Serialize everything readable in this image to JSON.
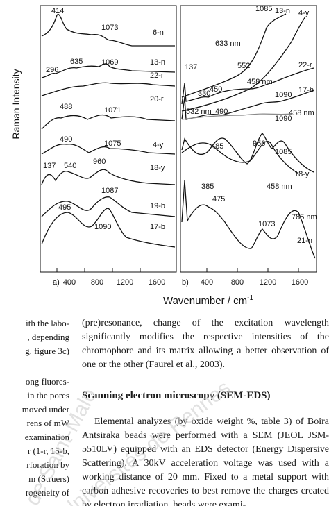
{
  "figure": {
    "y_axis_label": "Raman Intensity",
    "x_axis_label": "Wavenumber / cm",
    "x_axis_superscript": "-1",
    "panel_a": {
      "panel_label": "a)",
      "x_ticks": [
        "400",
        "800",
        "1200",
        "1600"
      ],
      "spectra": [
        {
          "label": "6-n",
          "peaks": [
            "414",
            "1073"
          ]
        },
        {
          "label": "13-n",
          "peaks": [
            "296",
            "635",
            "1069"
          ]
        },
        {
          "label": "22-r",
          "peaks": []
        },
        {
          "label": "20-r",
          "peaks": [
            "488",
            "1071"
          ]
        },
        {
          "label": "4-y",
          "peaks": [
            "490",
            "1075"
          ]
        },
        {
          "label": "18-y",
          "peaks": [
            "137",
            "540",
            "960"
          ]
        },
        {
          "label": "19-b",
          "peaks": [
            "1087"
          ]
        },
        {
          "label": "17-b",
          "peaks": [
            "495",
            "1090"
          ]
        }
      ]
    },
    "panel_b": {
      "panel_label": "b)",
      "x_ticks": [
        "400",
        "800",
        "1200",
        "1600"
      ],
      "spectra": [
        {
          "label": "13-n",
          "laser": "633 nm",
          "peaks": [
            "1085",
            "552"
          ]
        },
        {
          "label": "4-y",
          "laser": "",
          "peaks": []
        },
        {
          "label": "22-r",
          "laser": "458 nm",
          "peaks": [
            "137",
            "330",
            "450",
            "1090"
          ]
        },
        {
          "label": "17-b",
          "laser": "458 nm",
          "peaks": [
            "490",
            "1090"
          ]
        },
        {
          "label": "",
          "laser": "532 nm",
          "peaks": []
        },
        {
          "label": "18-y",
          "laser": "458 nm",
          "peaks": [
            "485",
            "956",
            "1085"
          ]
        },
        {
          "label": "21-n",
          "laser": "785 nm",
          "peaks": [
            "385",
            "475",
            "1073"
          ]
        }
      ]
    }
  },
  "watermark": {
    "line1": "de Saint-Malo",
    "line2": "Universités de Rennes"
  },
  "left_column_fragments": [
    "ith the labo-",
    ", depending",
    "g. figure 3c)",
    "",
    "ong fluores-",
    "in the pores",
    "moved under",
    "rens of mW",
    "examination",
    "r (1-r, 15-b,",
    "rforation by",
    "m (Struers)",
    "rogeneity of"
  ],
  "right_column": {
    "para1": "(pre)resonance, change of the excitation wavelength significantly modifies the respective intensities of the chromophore and its matrix allowing a better observation of one or the other (Faurel et al., 2003).",
    "heading": "Scanning electron microscopy (SEM-EDS)",
    "para2": "Elemental analyzes (by oxide weight %, table 3) of Boira Antsiraka beads were performed with a SEM (JEOL JSM-5510LV) equipped with an EDS detector (Energy Dispersive Scattering). A 30kV acceleration voltage was used with a working distance of 20 mm. Fixed to a metal support with carbon adhesive recoveries to best remove the charges created by electron irradiation, beads were exami-"
  }
}
